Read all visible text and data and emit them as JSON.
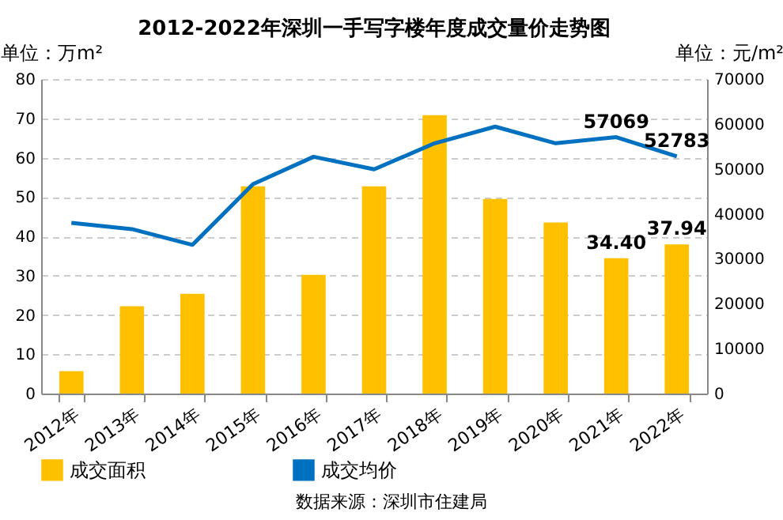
{
  "chart_data": {
    "type": "bar",
    "title": "2012-2022年深圳一手写字楼年度成交量价走势图",
    "ylabel": "单位：万m²",
    "y2label": "单位：元/m²",
    "annotations": [
      "数据来源：深圳市住建局"
    ],
    "categories": [
      "2012年",
      "2013年",
      "2014年",
      "2015年",
      "2016年",
      "2017年",
      "2018年",
      "2019年",
      "2020年",
      "2021年",
      "2022年"
    ],
    "series": [
      {
        "name": "成交面积",
        "color": "#ffc000",
        "values": [
          5.7,
          22.2,
          25.4,
          52.7,
          30.2,
          52.7,
          70.8,
          49.5,
          43.5,
          34.4,
          37.94
        ],
        "value_labels": [
          null,
          null,
          null,
          null,
          null,
          null,
          null,
          null,
          null,
          "34.40",
          "37.94"
        ]
      },
      {
        "name": "成交均价",
        "type": "line",
        "axis": "y2",
        "color": "#0070c0",
        "values": [
          38000,
          36600,
          33100,
          46600,
          52700,
          49900,
          55700,
          59400,
          55700,
          57069,
          52783
        ],
        "value_labels": [
          null,
          null,
          null,
          null,
          null,
          null,
          null,
          null,
          null,
          "57069",
          "52783"
        ]
      }
    ],
    "ylim": [
      0,
      80
    ],
    "yticks": [
      0,
      10,
      20,
      30,
      40,
      50,
      60,
      70,
      80
    ],
    "y2lim": [
      0,
      70000
    ],
    "y2ticks": [
      0,
      10000,
      20000,
      30000,
      40000,
      50000,
      60000,
      70000
    ],
    "grid": "y",
    "legend": "bottom",
    "marker": "none",
    "line_style": "solid"
  }
}
